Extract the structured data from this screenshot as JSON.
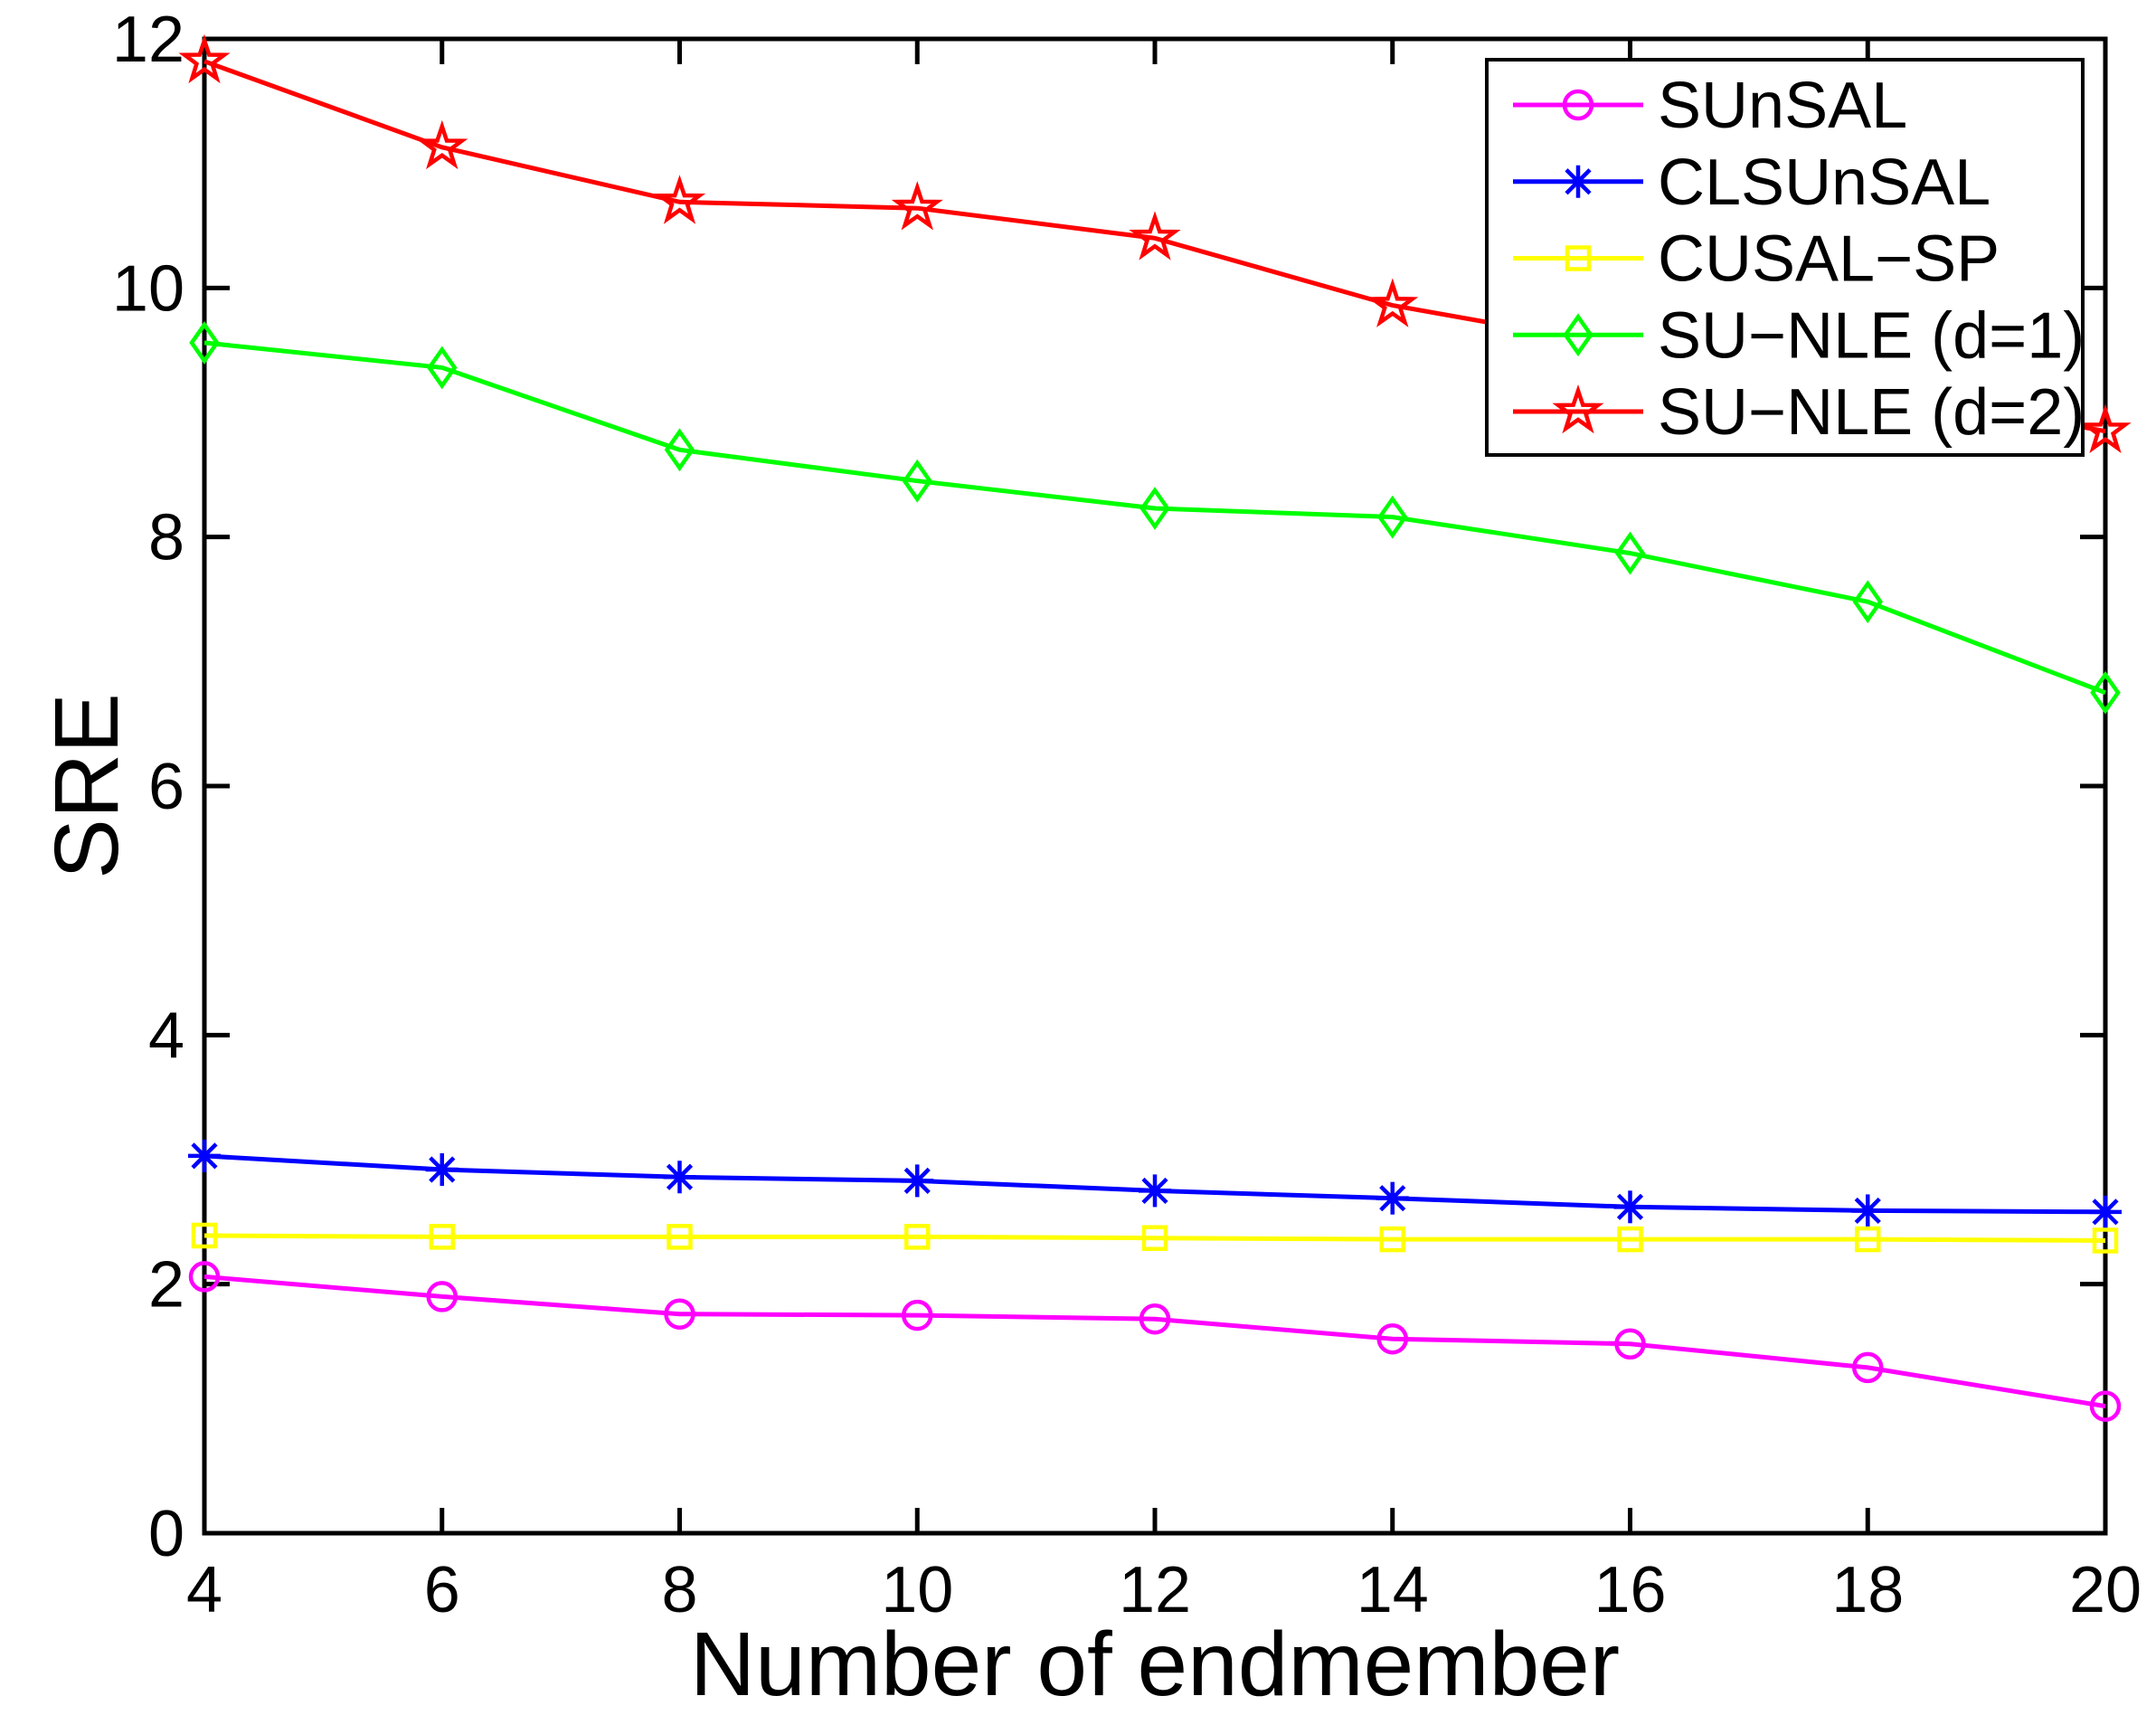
{
  "chart_data": {
    "type": "line",
    "title": "",
    "xlabel": "Number of endmember",
    "ylabel": "SRE",
    "x": [
      4,
      6,
      8,
      10,
      12,
      14,
      16,
      18,
      20
    ],
    "xlim": [
      4,
      20
    ],
    "ylim": [
      0,
      12
    ],
    "xticks": [
      4,
      6,
      8,
      10,
      12,
      14,
      16,
      18,
      20
    ],
    "yticks": [
      0,
      2,
      4,
      6,
      8,
      10,
      12
    ],
    "grid": false,
    "legend_position": "top-right",
    "series": [
      {
        "name": "SUnSAL",
        "color": "#FF00FF",
        "marker": "circle",
        "values": [
          2.06,
          1.9,
          1.76,
          1.75,
          1.72,
          1.56,
          1.52,
          1.33,
          1.02
        ]
      },
      {
        "name": "CLSUnSAL",
        "color": "#0000FF",
        "marker": "asterisk",
        "values": [
          3.03,
          2.92,
          2.86,
          2.83,
          2.75,
          2.69,
          2.62,
          2.59,
          2.58
        ]
      },
      {
        "name": "CUSAL−SP",
        "color": "#FFFF00",
        "marker": "square",
        "values": [
          2.39,
          2.38,
          2.38,
          2.38,
          2.37,
          2.36,
          2.36,
          2.36,
          2.35
        ]
      },
      {
        "name": "SU−NLE (d=1)",
        "color": "#00FF00",
        "marker": "diamond",
        "values": [
          9.56,
          9.36,
          8.7,
          8.45,
          8.23,
          8.16,
          7.87,
          7.48,
          6.75
        ]
      },
      {
        "name": "SU−NLE (d=2)",
        "color": "#FF0000",
        "marker": "pentagram",
        "values": [
          11.82,
          11.13,
          10.69,
          10.64,
          10.4,
          9.86,
          9.52,
          9.19,
          8.85
        ]
      }
    ]
  },
  "colors": {
    "frame": "#000000",
    "background": "#FFFFFF",
    "text": "#000000"
  }
}
